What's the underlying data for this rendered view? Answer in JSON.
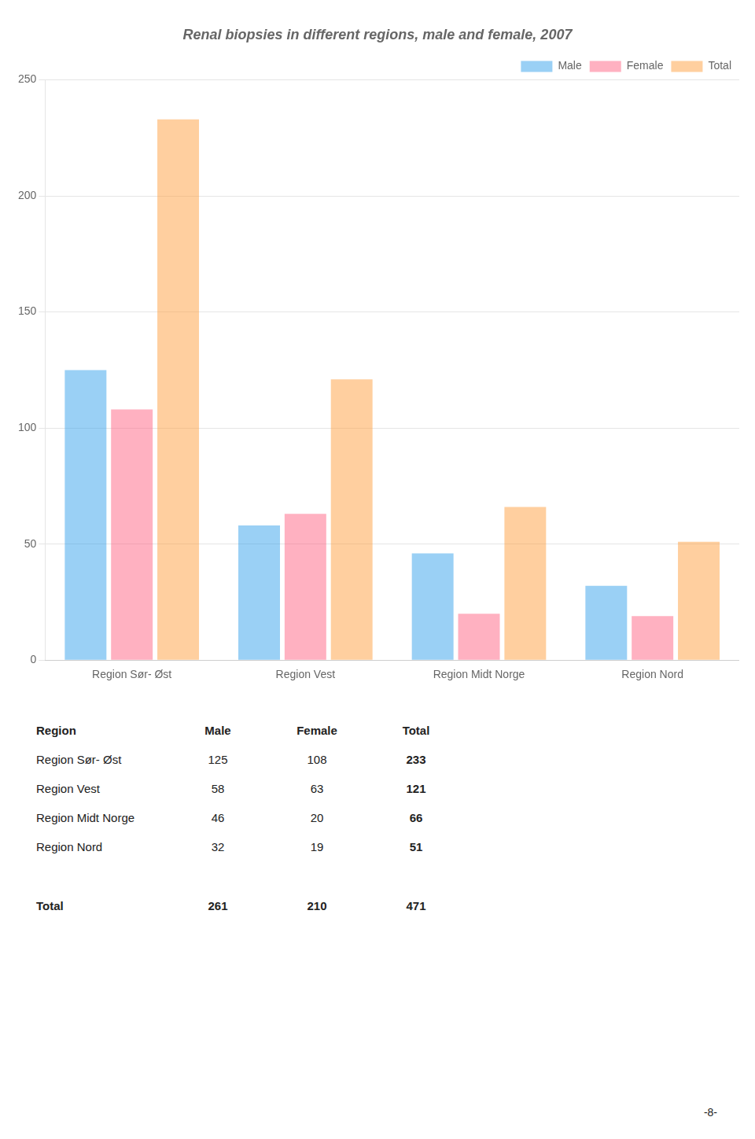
{
  "chart_data": {
    "type": "bar",
    "title": "Renal biopsies in different regions, male and female, 2007",
    "categories": [
      "Region Sør- Øst",
      "Region Vest",
      "Region Midt Norge",
      "Region Nord"
    ],
    "series": [
      {
        "name": "Male",
        "values": [
          125,
          58,
          46,
          32
        ]
      },
      {
        "name": "Female",
        "values": [
          108,
          63,
          20,
          19
        ]
      },
      {
        "name": "Total",
        "values": [
          233,
          121,
          66,
          51
        ]
      }
    ],
    "ylim": [
      0,
      250
    ],
    "yticks": [
      0,
      50,
      100,
      150,
      200,
      250
    ],
    "grid": true,
    "legend": "upper right",
    "table": {
      "headers": [
        "Region",
        "Male",
        "Female",
        "Total"
      ],
      "rows": [
        [
          "Region Sør- Øst",
          "125",
          "108",
          "233"
        ],
        [
          "Region Vest",
          "58",
          "63",
          "121"
        ],
        [
          "Region Midt Norge",
          "46",
          "20",
          "66"
        ],
        [
          "Region Nord",
          "32",
          "19",
          "51"
        ]
      ],
      "total_row": [
        "Total",
        "261",
        "210",
        "471"
      ]
    },
    "annotations": [
      "-8-"
    ]
  }
}
